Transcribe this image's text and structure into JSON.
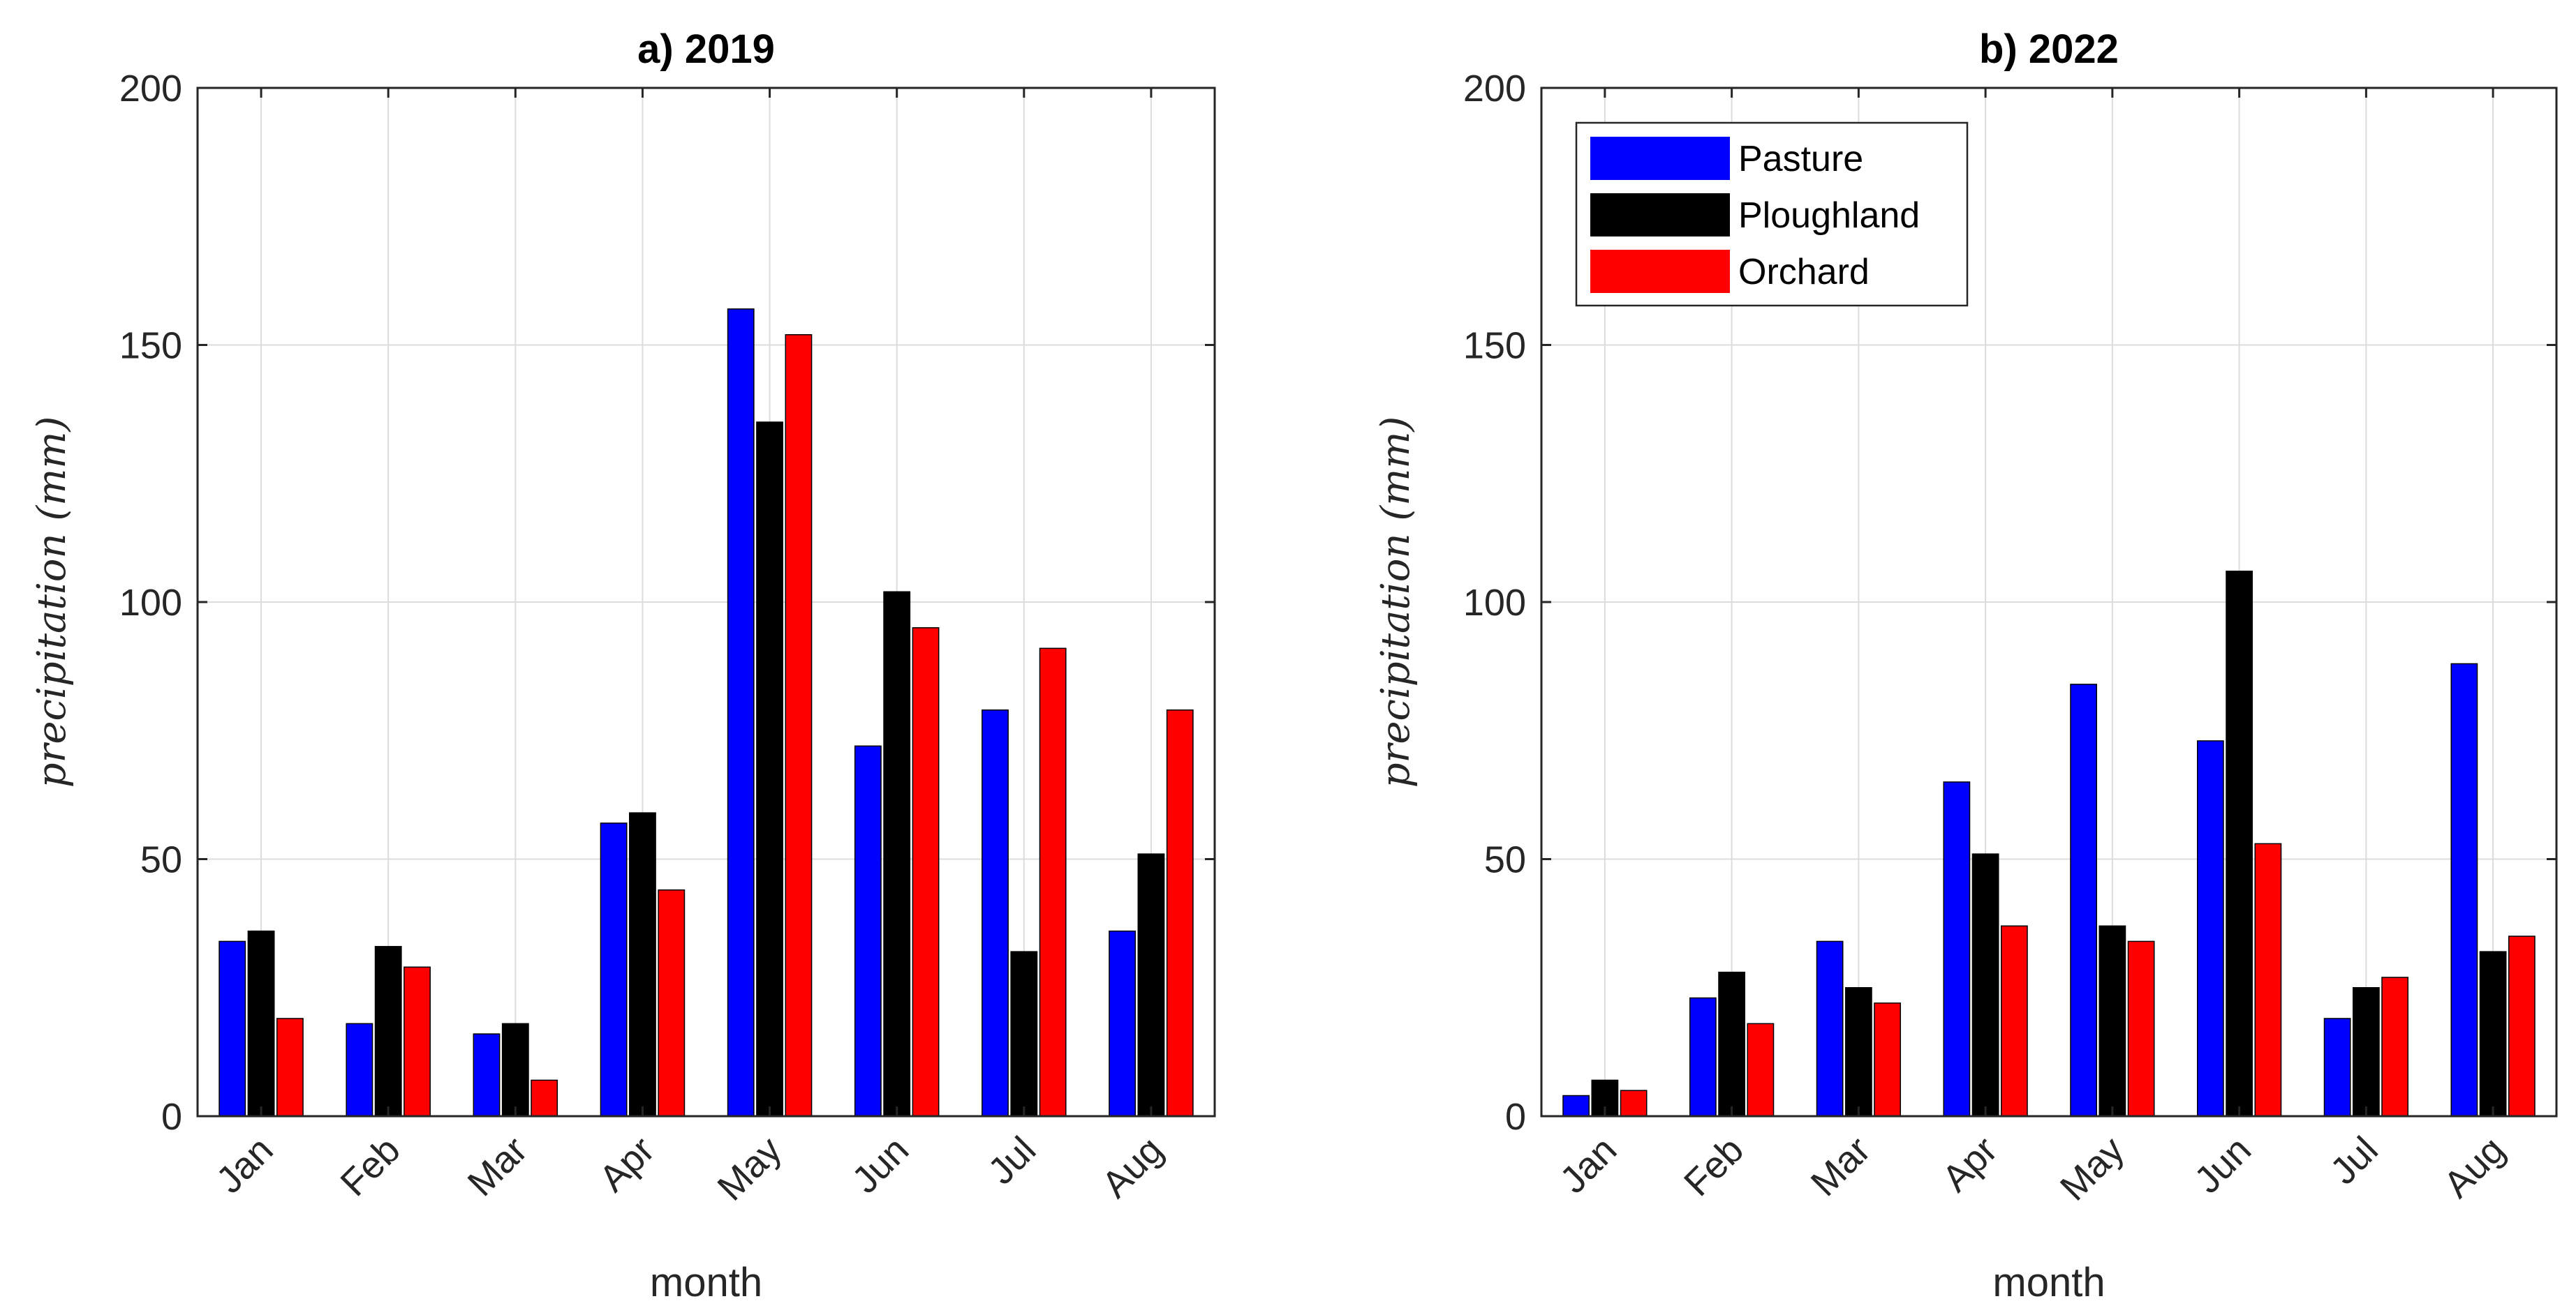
{
  "colors": {
    "Pasture": "#0000ff",
    "Ploughland": "#000000",
    "Orchard": "#ff0000",
    "grid": "#dcdcdc",
    "axis": "#262626"
  },
  "chart_data": [
    {
      "type": "bar",
      "title": "a) 2019",
      "xlabel": "month",
      "ylabel": "precipitation (mm)",
      "ylim": [
        0,
        200
      ],
      "yticks": [
        "0",
        "50",
        "100",
        "150",
        "200"
      ],
      "categories": [
        "Jan",
        "Feb",
        "Mar",
        "Apr",
        "May",
        "Jun",
        "Jul",
        "Aug"
      ],
      "grid": true,
      "legend": null,
      "series": [
        {
          "name": "Pasture",
          "values": [
            34,
            18,
            16,
            57,
            157,
            72,
            79,
            36
          ]
        },
        {
          "name": "Ploughland",
          "values": [
            36,
            33,
            18,
            59,
            135,
            102,
            32,
            51
          ]
        },
        {
          "name": "Orchard",
          "values": [
            19,
            29,
            7,
            44,
            152,
            95,
            91,
            79
          ]
        }
      ]
    },
    {
      "type": "bar",
      "title": "b) 2022",
      "xlabel": "month",
      "ylabel": "precipitation (mm)",
      "ylim": [
        0,
        200
      ],
      "yticks": [
        "0",
        "50",
        "100",
        "150",
        "200"
      ],
      "categories": [
        "Jan",
        "Feb",
        "Mar",
        "Apr",
        "May",
        "Jun",
        "Jul",
        "Aug"
      ],
      "grid": true,
      "legend": "top-left",
      "series": [
        {
          "name": "Pasture",
          "values": [
            4,
            23,
            34,
            65,
            84,
            73,
            19,
            88
          ]
        },
        {
          "name": "Ploughland",
          "values": [
            7,
            28,
            25,
            51,
            37,
            106,
            25,
            32
          ]
        },
        {
          "name": "Orchard",
          "values": [
            5,
            18,
            22,
            37,
            34,
            53,
            27,
            35
          ]
        }
      ]
    }
  ]
}
